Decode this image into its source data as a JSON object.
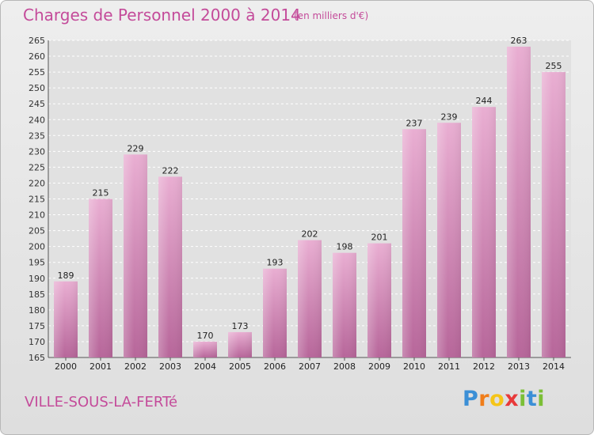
{
  "title": "Charges de Personnel 2000 à 2014",
  "subtitle": "(en milliers d'€)",
  "place": "VILLE-SOUS-LA-FERTé",
  "brand": {
    "text": "Proxiti",
    "letters": [
      "P",
      "r",
      "o",
      "x",
      "i",
      "t",
      "i"
    ],
    "letter_colors": [
      "#3b8fd6",
      "#f07d1a",
      "#f5c518",
      "#e8393a",
      "#7bbf36",
      "#3b8fd6",
      "#7bbf36"
    ]
  },
  "colors": {
    "accent": "#c44b9a",
    "bar_light": "#e9aed2",
    "bar_dark": "#b7669a",
    "grid": "#ffffff",
    "plot_bg": "#e1e1e1"
  },
  "chart_data": {
    "type": "bar",
    "categories": [
      "2000",
      "2001",
      "2002",
      "2003",
      "2004",
      "2005",
      "2006",
      "2007",
      "2008",
      "2009",
      "2010",
      "2011",
      "2012",
      "2013",
      "2014"
    ],
    "values": [
      189,
      215,
      229,
      222,
      170,
      173,
      193,
      202,
      198,
      201,
      237,
      239,
      244,
      263,
      255
    ],
    "ylim": [
      165,
      265
    ],
    "yticks": [
      165,
      170,
      175,
      180,
      185,
      190,
      195,
      200,
      205,
      210,
      215,
      220,
      225,
      230,
      235,
      240,
      245,
      250,
      255,
      260,
      265
    ],
    "grid": true,
    "title": "Charges de Personnel 2000 à 2014",
    "xlabel": "",
    "ylabel": ""
  }
}
